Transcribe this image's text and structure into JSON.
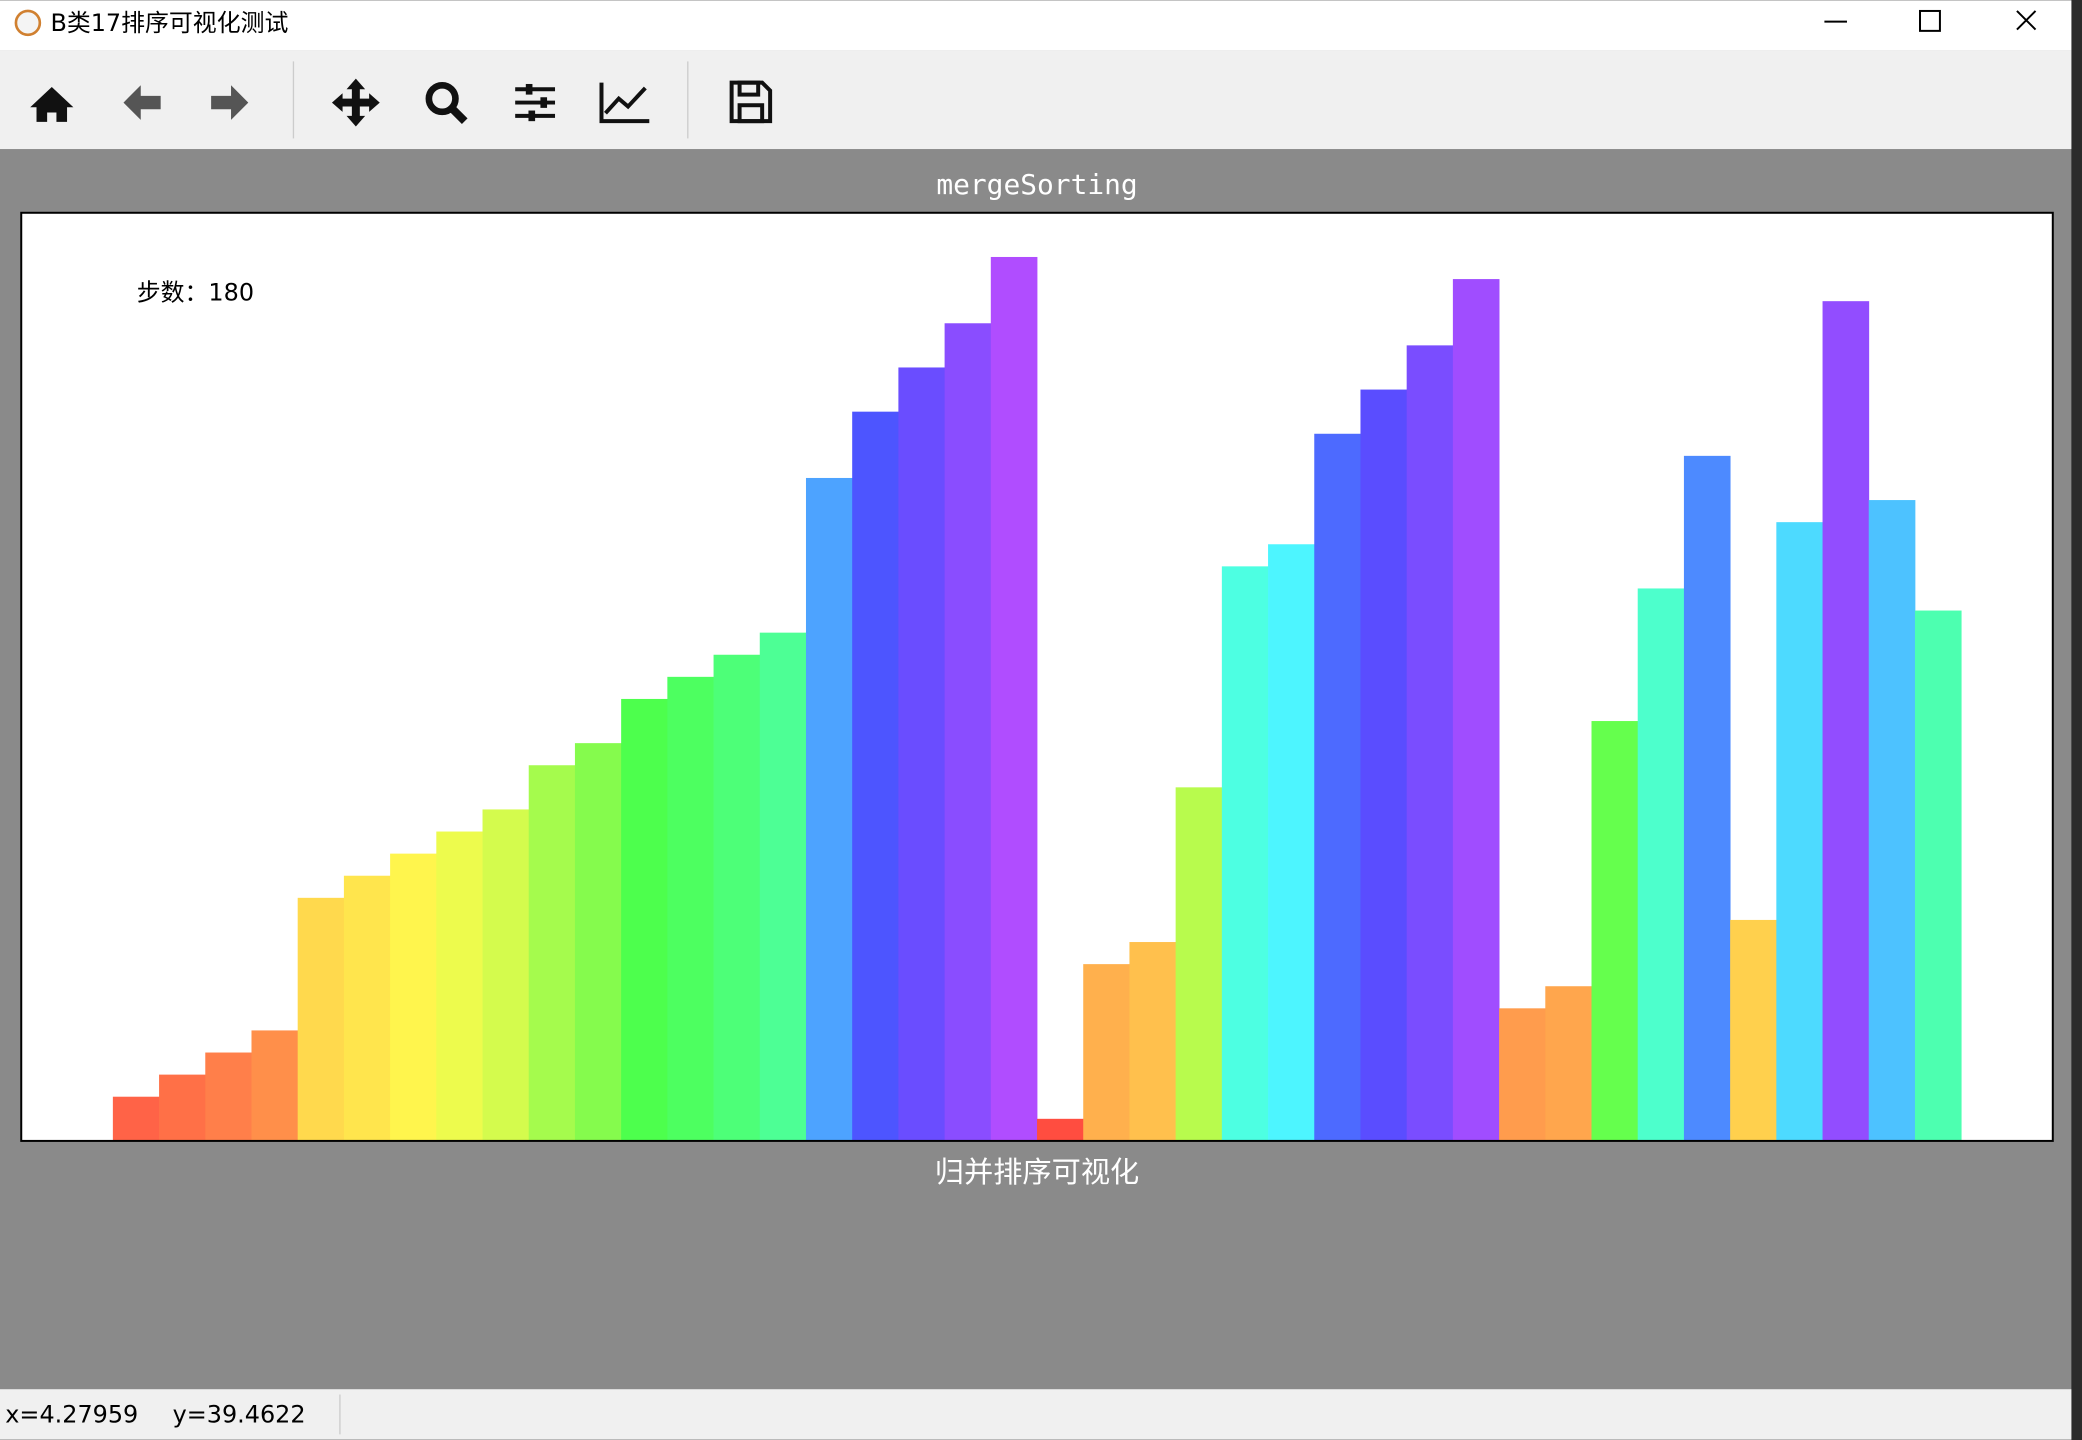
{
  "window": {
    "title": "B类17排序可视化测试"
  },
  "status": {
    "x": "x=4.27959",
    "y": "y=39.4622"
  },
  "chart_data": {
    "type": "bar",
    "title": "mergeSorting",
    "x_label": "归并排序可视化",
    "annotation": "步数：180",
    "values": [
      2,
      3,
      4,
      5,
      11,
      12,
      13,
      14,
      15,
      17,
      18,
      20,
      21,
      22,
      23,
      30,
      33,
      35,
      37,
      40,
      1,
      8,
      9,
      16,
      26,
      27,
      32,
      34,
      36,
      39,
      6,
      7,
      19,
      25,
      31,
      10,
      28,
      38,
      29,
      24
    ],
    "colors": [
      "#ff6347",
      "#ff7047",
      "#ff7f4a",
      "#ff8f4a",
      "#ffd94d",
      "#ffe54d",
      "#fff54d",
      "#edfb4d",
      "#d4fb4d",
      "#a5fb4d",
      "#85fb4d",
      "#4dff4d",
      "#4dff60",
      "#4dff78",
      "#4dff95",
      "#4da3ff",
      "#4d55ff",
      "#6a4dff",
      "#8a4dff",
      "#b04dff",
      "#ff4d40",
      "#ffb04d",
      "#ffc04d",
      "#b8fb4d",
      "#4dffe2",
      "#4df5ff",
      "#4d6aff",
      "#5a4dff",
      "#7a4dff",
      "#a04dff",
      "#ff9c4d",
      "#ffa64d",
      "#65ff4d",
      "#4dffcc",
      "#4d8aff",
      "#ffd04d",
      "#4ddaff",
      "#924dff",
      "#4dc2ff",
      "#4dffb0"
    ],
    "ylim": [
      0,
      42
    ]
  }
}
